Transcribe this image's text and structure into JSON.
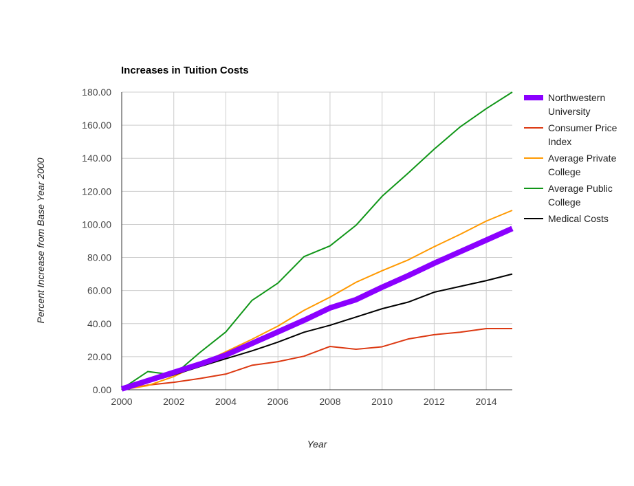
{
  "chart_data": {
    "type": "line",
    "title": "Increases in Tuition Costs",
    "xlabel": "Year",
    "ylabel": "Percent Increase from Base Year 2000",
    "xlim": [
      2000,
      2015
    ],
    "ylim": [
      0,
      180
    ],
    "x_ticks": [
      "2000",
      "2002",
      "2004",
      "2006",
      "2008",
      "2010",
      "2012",
      "2014"
    ],
    "y_ticks": [
      "0.00",
      "20.00",
      "40.00",
      "60.00",
      "80.00",
      "100.00",
      "120.00",
      "140.00",
      "160.00",
      "180.00"
    ],
    "grid": true,
    "legend_position": "right",
    "x": [
      2000,
      2001,
      2002,
      2003,
      2004,
      2005,
      2006,
      2007,
      2008,
      2009,
      2010,
      2011,
      2012,
      2013,
      2014,
      2015
    ],
    "series": [
      {
        "name": "Northwestern University",
        "color": "#8b00ff",
        "emphasis": "thick",
        "values": [
          0.5,
          5.5,
          10.5,
          15.5,
          21,
          28,
          35,
          42,
          49.5,
          54.5,
          62,
          69,
          76.5,
          83.5,
          90.5,
          97.5
        ]
      },
      {
        "name": "Consumer Price Index",
        "color": "#dc3912",
        "values": [
          0,
          2.8,
          4.5,
          6.8,
          9.5,
          14.8,
          17,
          20.3,
          26.2,
          24.5,
          26,
          30.7,
          33.3,
          34.8,
          37,
          37
        ]
      },
      {
        "name": "Average Private College",
        "color": "#ff9900",
        "values": [
          0,
          2.5,
          8,
          15.5,
          23,
          30.5,
          38.5,
          48,
          56,
          65,
          72,
          78.5,
          86.5,
          94,
          102,
          108.5
        ]
      },
      {
        "name": "Average Public College",
        "color": "#109618",
        "values": [
          0.5,
          11,
          9,
          22.5,
          35,
          54,
          64.5,
          80.5,
          87,
          99.5,
          117,
          131,
          145.5,
          159,
          170,
          180
        ]
      },
      {
        "name": "Medical Costs",
        "color": "#000000",
        "values": [
          0,
          4.5,
          9,
          14,
          18.8,
          23.5,
          28.8,
          34.8,
          39,
          44,
          49,
          53,
          59,
          62.5,
          66,
          70
        ]
      }
    ]
  }
}
